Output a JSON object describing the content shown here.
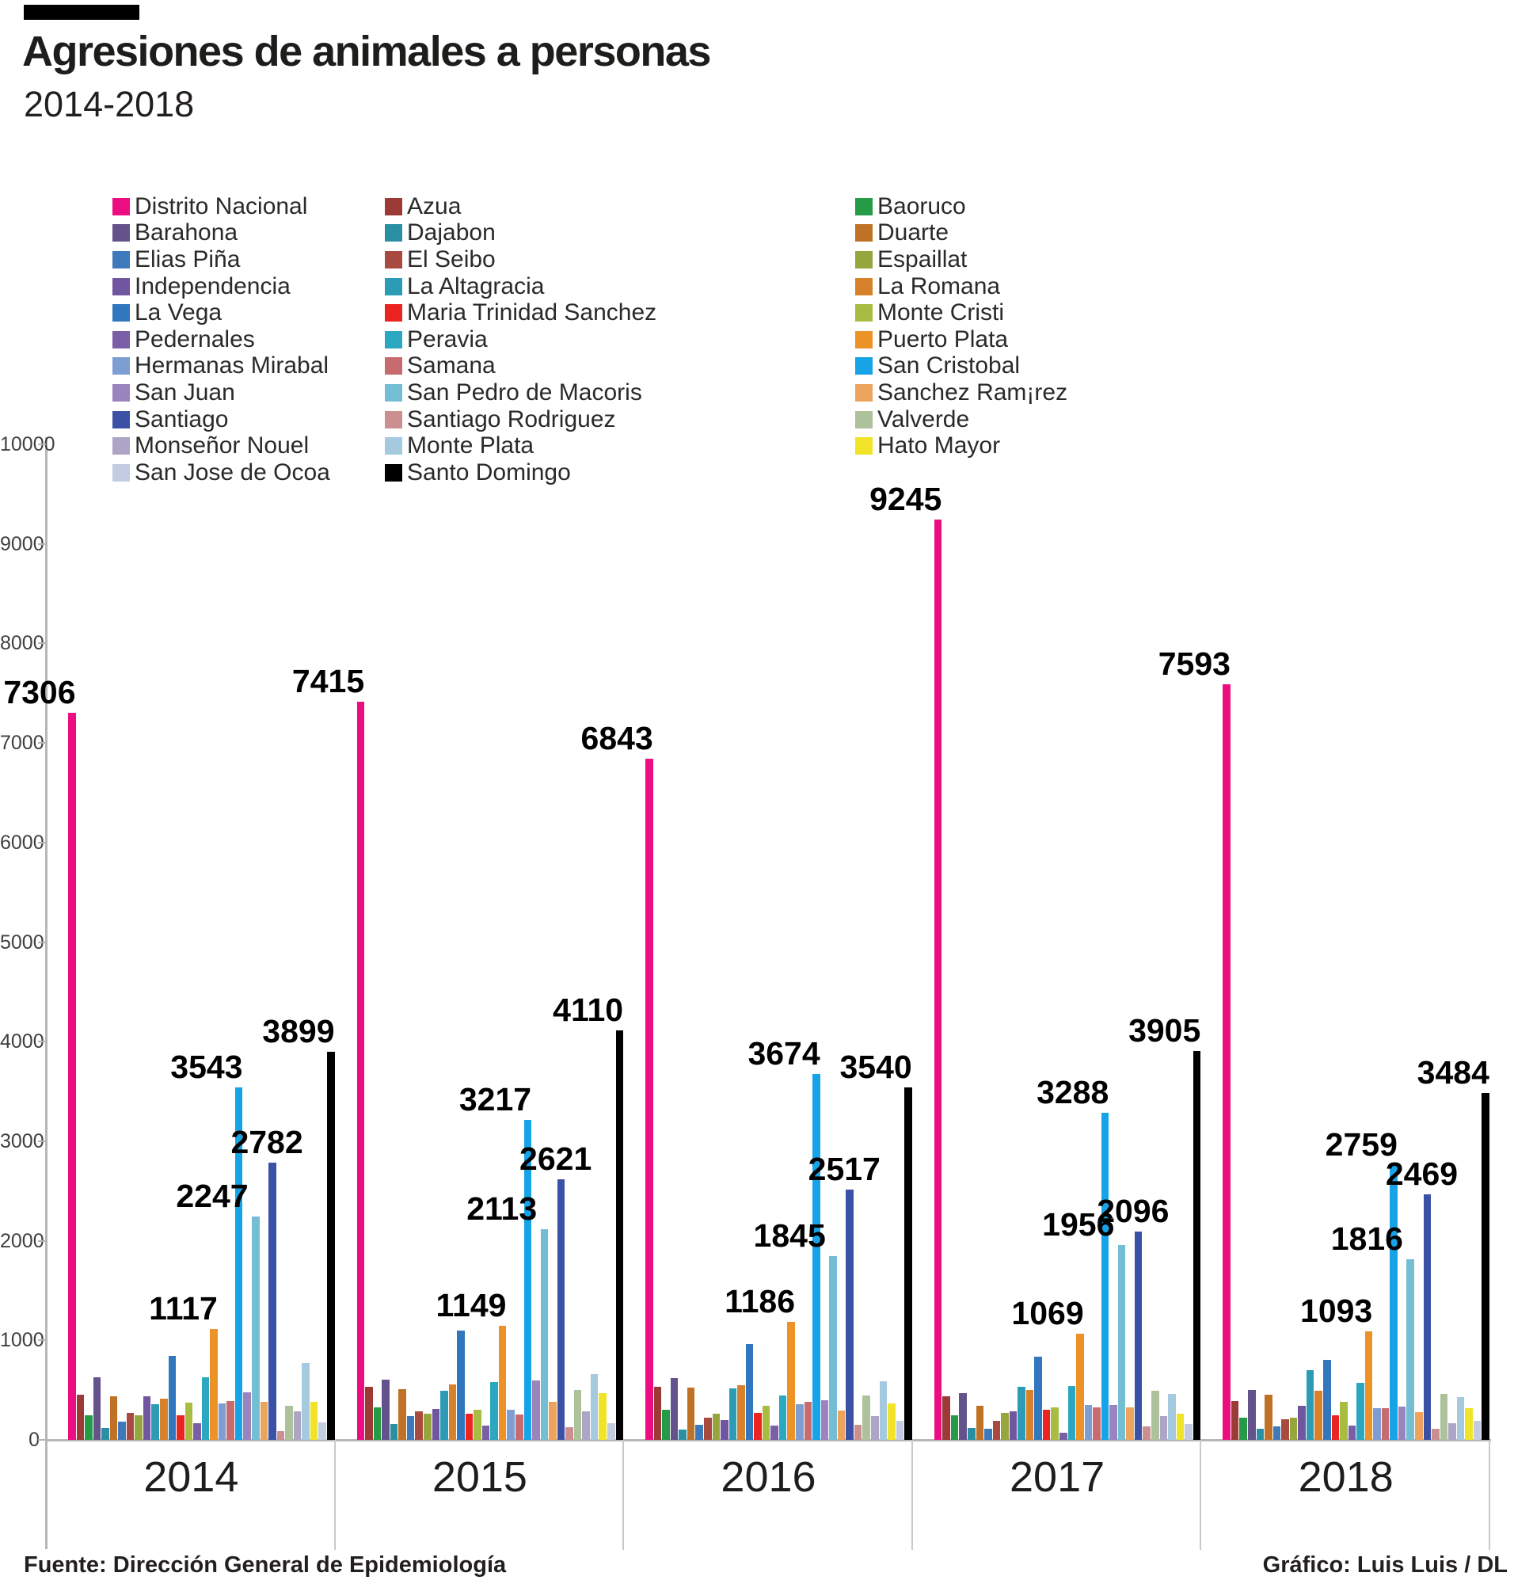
{
  "header": {
    "title": "Agresiones de animales a personas",
    "subtitle": "2014-2018"
  },
  "footer": {
    "source": "Fuente: Dirección General de Epidemiología",
    "credit": "Gráfico: Luis Luis / DL"
  },
  "chart_data": {
    "type": "bar",
    "title": "Agresiones de animales a personas",
    "subtitle": "2014-2018",
    "grid": false,
    "legend_position": "top",
    "categories": [
      "2014",
      "2015",
      "2016",
      "2017",
      "2018"
    ],
    "y_axis": {
      "min": 0,
      "max": 10000,
      "step": 1000,
      "tick_labels": [
        "0",
        "1000",
        "2000",
        "3000",
        "4000",
        "5000",
        "6000",
        "7000",
        "8000",
        "9000",
        "10000"
      ]
    },
    "series": [
      {
        "name": "Distrito Nacional",
        "color": "#ec0d80",
        "values": [
          7306,
          7415,
          6843,
          9245,
          7593
        ]
      },
      {
        "name": "Azua",
        "color": "#9c3a36",
        "values": [
          450,
          530,
          530,
          435,
          390
        ]
      },
      {
        "name": "Baoruco",
        "color": "#259a47",
        "values": [
          250,
          325,
          300,
          250,
          220
        ]
      },
      {
        "name": "Barahona",
        "color": "#63528b",
        "values": [
          630,
          605,
          620,
          470,
          505
        ]
      },
      {
        "name": "Dajabon",
        "color": "#2b8fa3",
        "values": [
          120,
          160,
          100,
          120,
          115
        ]
      },
      {
        "name": "Duarte",
        "color": "#bf7226",
        "values": [
          440,
          510,
          525,
          340,
          450
        ]
      },
      {
        "name": "Elias Piña",
        "color": "#3e79bc",
        "values": [
          185,
          235,
          150,
          115,
          135
        ]
      },
      {
        "name": "El Seibo",
        "color": "#a94a40",
        "values": [
          270,
          285,
          220,
          190,
          205
        ]
      },
      {
        "name": "Espaillat",
        "color": "#96a63c",
        "values": [
          245,
          260,
          260,
          270,
          225
        ]
      },
      {
        "name": "Independencia",
        "color": "#7055a0",
        "values": [
          440,
          310,
          200,
          285,
          340
        ]
      },
      {
        "name": "La Altagracia",
        "color": "#2c9bb5",
        "values": [
          355,
          490,
          515,
          535,
          700
        ]
      },
      {
        "name": "La Romana",
        "color": "#d8812b",
        "values": [
          410,
          560,
          550,
          505,
          490
        ]
      },
      {
        "name": "La Vega",
        "color": "#3077be",
        "values": [
          840,
          1100,
          960,
          835,
          800
        ]
      },
      {
        "name": "Maria Trinidad Sanchez",
        "color": "#eb2321",
        "values": [
          245,
          260,
          270,
          305,
          245
        ]
      },
      {
        "name": "Monte Cristi",
        "color": "#a8bc42",
        "values": [
          375,
          300,
          340,
          330,
          385
        ]
      },
      {
        "name": "Pedernales",
        "color": "#7a5ea6",
        "values": [
          165,
          140,
          140,
          75,
          140
        ]
      },
      {
        "name": "Peravia",
        "color": "#2ba7c2",
        "values": [
          630,
          580,
          445,
          540,
          570
        ]
      },
      {
        "name": "Puerto Plata",
        "color": "#ed9227",
        "values": [
          1117,
          1149,
          1186,
          1069,
          1093
        ]
      },
      {
        "name": "Hermanas Mirabal",
        "color": "#7e9dd3",
        "values": [
          370,
          300,
          355,
          350,
          315
        ]
      },
      {
        "name": "Samana",
        "color": "#c76c6e",
        "values": [
          390,
          255,
          385,
          325,
          315
        ]
      },
      {
        "name": "San Cristobal",
        "color": "#16a3e8",
        "values": [
          3543,
          3217,
          3674,
          3288,
          2759
        ]
      },
      {
        "name": "San Juan",
        "color": "#9a84be",
        "values": [
          480,
          595,
          395,
          350,
          335
        ]
      },
      {
        "name": "San Pedro de Macoris",
        "color": "#74bed4",
        "values": [
          2247,
          2113,
          1845,
          1956,
          1816
        ]
      },
      {
        "name": "Sanchez Ram¡rez",
        "color": "#eca45d",
        "values": [
          385,
          380,
          295,
          330,
          280
        ]
      },
      {
        "name": "Santiago",
        "color": "#3b51a6",
        "values": [
          2782,
          2621,
          2517,
          2096,
          2469
        ]
      },
      {
        "name": "Santiago Rodriguez",
        "color": "#cc8f90",
        "values": [
          90,
          130,
          150,
          135,
          110
        ]
      },
      {
        "name": "Valverde",
        "color": "#adc29a",
        "values": [
          345,
          505,
          445,
          490,
          460
        ]
      },
      {
        "name": "Monseñor Nouel",
        "color": "#aea5c6",
        "values": [
          290,
          290,
          240,
          240,
          165
        ]
      },
      {
        "name": "Monte Plata",
        "color": "#a5cadf",
        "values": [
          770,
          660,
          590,
          465,
          430
        ]
      },
      {
        "name": "Hato Mayor",
        "color": "#f1e428",
        "values": [
          385,
          470,
          365,
          265,
          315
        ]
      },
      {
        "name": "San Jose de Ocoa",
        "color": "#c4cce2",
        "values": [
          175,
          165,
          190,
          160,
          190
        ]
      },
      {
        "name": "Santo Domingo",
        "color": "#000000",
        "values": [
          3899,
          4110,
          3540,
          3905,
          3484
        ]
      }
    ],
    "labeled_series": [
      "Distrito Nacional",
      "Puerto Plata",
      "San Cristobal",
      "San Pedro de Macoris",
      "Santiago",
      "Santo Domingo"
    ],
    "legend_columns": [
      [
        "Distrito Nacional",
        "Barahona",
        "Elias Piña",
        "Independencia",
        "La Vega",
        "Pedernales",
        "Hermanas Mirabal",
        "San Juan",
        "Santiago",
        "Monseñor Nouel",
        "San Jose de Ocoa"
      ],
      [
        "Azua",
        "Dajabon",
        "El Seibo",
        "La Altagracia",
        "Maria Trinidad Sanchez",
        "Peravia",
        "Samana",
        "San Pedro de Macoris",
        "Santiago Rodriguez",
        "Monte Plata",
        "Santo Domingo"
      ],
      [
        "Baoruco",
        "Duarte",
        "Espaillat",
        "La Romana",
        "Monte Cristi",
        "Puerto Plata",
        "San Cristobal",
        "Sanchez Ram¡rez",
        "Valverde",
        "Hato Mayor"
      ]
    ]
  }
}
